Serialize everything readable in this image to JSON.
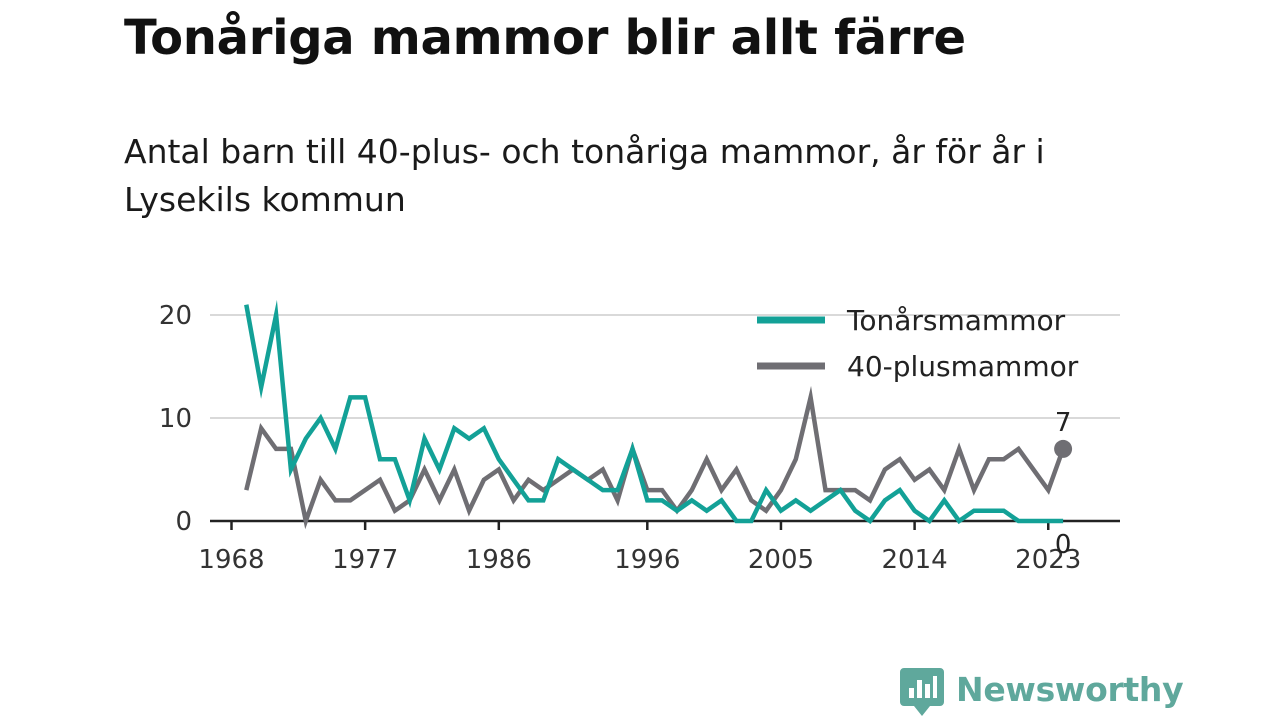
{
  "title": "Tonåriga mammor blir allt färre",
  "subtitle": "Antal barn till 40-plus- och tonåriga mammor, år för år i Lysekils kommun",
  "brand": {
    "name": "Newsworthy",
    "color": "#5fa89c"
  },
  "chart_data": {
    "type": "line",
    "x": [
      1969,
      1970,
      1971,
      1972,
      1973,
      1974,
      1975,
      1976,
      1977,
      1978,
      1979,
      1980,
      1981,
      1982,
      1983,
      1984,
      1985,
      1986,
      1987,
      1988,
      1989,
      1990,
      1991,
      1992,
      1993,
      1994,
      1995,
      1996,
      1997,
      1998,
      1999,
      2000,
      2001,
      2002,
      2003,
      2004,
      2005,
      2006,
      2007,
      2008,
      2009,
      2010,
      2011,
      2012,
      2013,
      2014,
      2015,
      2016,
      2017,
      2018,
      2019,
      2020,
      2021,
      2022,
      2023,
      2024
    ],
    "series": [
      {
        "name": "Tonårsmammor",
        "color": "#13a197",
        "values": [
          21,
          13,
          20,
          5,
          8,
          10,
          7,
          12,
          12,
          6,
          6,
          2,
          8,
          5,
          9,
          8,
          9,
          6,
          4,
          2,
          2,
          6,
          5,
          4,
          3,
          3,
          7,
          2,
          2,
          1,
          2,
          1,
          2,
          0,
          0,
          3,
          1,
          2,
          1,
          2,
          3,
          1,
          0,
          2,
          3,
          1,
          0,
          2,
          0,
          1,
          1,
          1,
          0,
          0,
          0,
          0
        ]
      },
      {
        "name": "40-plusmammor",
        "color": "#6f6e73",
        "values": [
          3,
          9,
          7,
          7,
          0,
          4,
          2,
          2,
          3,
          4,
          1,
          2,
          5,
          2,
          5,
          1,
          4,
          5,
          2,
          4,
          3,
          4,
          5,
          4,
          5,
          2,
          7,
          3,
          3,
          1,
          3,
          6,
          3,
          5,
          2,
          1,
          3,
          6,
          12,
          3,
          3,
          3,
          2,
          5,
          6,
          4,
          5,
          3,
          7,
          3,
          6,
          6,
          7,
          5,
          3,
          7
        ]
      }
    ],
    "xticks": [
      1968,
      1977,
      1986,
      1996,
      2005,
      2014,
      2023
    ],
    "yticks": [
      0,
      10,
      20
    ],
    "xlim": [
      1968,
      2026
    ],
    "ylim": [
      0,
      21
    ],
    "grid": true,
    "legend": "top-right",
    "end_labels": [
      "0",
      "7"
    ]
  }
}
